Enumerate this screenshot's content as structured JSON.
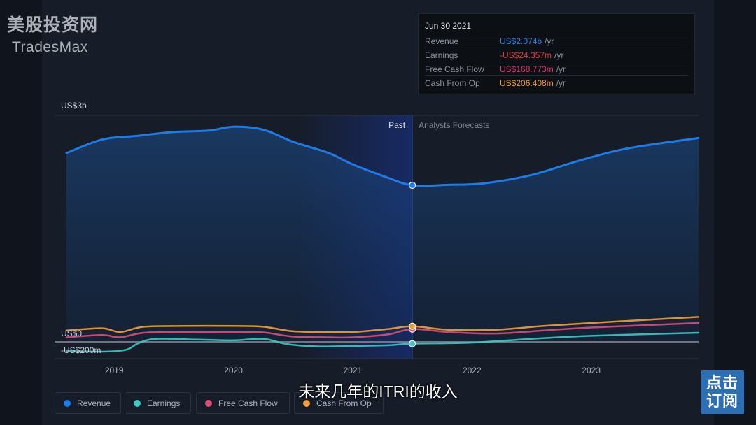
{
  "watermark": {
    "cn": "美股投资网",
    "en": "TradesMax"
  },
  "tooltip": {
    "date": "Jun 30 2021",
    "rows": [
      {
        "label": "Revenue",
        "value": "US$2.074b",
        "unit": "/yr",
        "color": "#2f80e8"
      },
      {
        "label": "Earnings",
        "value": "-US$24.357m",
        "unit": "/yr",
        "color": "#e23b3b"
      },
      {
        "label": "Free Cash Flow",
        "value": "US$168.773m",
        "unit": "/yr",
        "color": "#e0346a"
      },
      {
        "label": "Cash From Op",
        "value": "US$206.408m",
        "unit": "/yr",
        "color": "#f29a2e"
      }
    ]
  },
  "subtitle": "未来几年的ITRI的收入",
  "badge": {
    "line1": "点击",
    "line2": "订阅"
  },
  "legend": [
    {
      "label": "Revenue",
      "color": "#1f7be6"
    },
    {
      "label": "Earnings",
      "color": "#3ec8c4"
    },
    {
      "label": "Free Cash Flow",
      "color": "#d94f7a"
    },
    {
      "label": "Cash From Op",
      "color": "#f0a03c"
    }
  ],
  "chart_data": {
    "type": "area",
    "y_unit": "US$ millions",
    "ylim": [
      -200,
      3000
    ],
    "y_tick_labels": [
      {
        "value": 3000,
        "label": "US$3b"
      },
      {
        "value": 0,
        "label": "US$0"
      },
      {
        "value": -200,
        "label": "-US$200m"
      }
    ],
    "x_tick_labels": [
      "2019",
      "2020",
      "2021",
      "2022",
      "2023"
    ],
    "xlim": [
      2018.5,
      2023.9
    ],
    "divider_x": 2021.5,
    "region_labels": {
      "past": "Past",
      "forecast": "Analysts Forecasts"
    },
    "series": [
      {
        "name": "Revenue",
        "color": "#1f7be6",
        "x": [
          2018.6,
          2018.9,
          2019.2,
          2019.5,
          2019.8,
          2020.0,
          2020.25,
          2020.5,
          2020.8,
          2021.0,
          2021.25,
          2021.5,
          2021.8,
          2022.1,
          2022.5,
          2022.9,
          2023.3,
          2023.9
        ],
        "y": [
          2500,
          2680,
          2730,
          2780,
          2800,
          2850,
          2810,
          2650,
          2500,
          2350,
          2200,
          2074,
          2080,
          2100,
          2210,
          2400,
          2560,
          2700
        ]
      },
      {
        "name": "Earnings",
        "color": "#3ec8c4",
        "x": [
          2018.6,
          2018.9,
          2019.1,
          2019.2,
          2019.35,
          2019.7,
          2020.0,
          2020.25,
          2020.45,
          2020.7,
          2021.0,
          2021.3,
          2021.5,
          2022.0,
          2022.5,
          2023.0,
          2023.9
        ],
        "y": [
          -120,
          -130,
          -105,
          -20,
          40,
          30,
          20,
          40,
          -30,
          -60,
          -55,
          -45,
          -24,
          -10,
          40,
          80,
          120
        ]
      },
      {
        "name": "Free Cash Flow",
        "color": "#d94f7a",
        "x": [
          2018.6,
          2018.9,
          2019.05,
          2019.25,
          2019.6,
          2020.0,
          2020.25,
          2020.5,
          2020.8,
          2021.0,
          2021.3,
          2021.5,
          2021.8,
          2022.2,
          2022.6,
          2023.0,
          2023.9
        ],
        "y": [
          60,
          90,
          60,
          120,
          130,
          130,
          125,
          70,
          60,
          60,
          100,
          169,
          130,
          110,
          150,
          190,
          250
        ]
      },
      {
        "name": "Cash From Op",
        "color": "#f0a03c",
        "x": [
          2018.6,
          2018.9,
          2019.05,
          2019.25,
          2019.6,
          2020.0,
          2020.25,
          2020.5,
          2020.8,
          2021.0,
          2021.3,
          2021.5,
          2021.8,
          2022.2,
          2022.6,
          2023.0,
          2023.9
        ],
        "y": [
          150,
          180,
          130,
          200,
          210,
          210,
          200,
          140,
          130,
          130,
          170,
          206,
          160,
          160,
          210,
          250,
          330
        ]
      }
    ]
  }
}
